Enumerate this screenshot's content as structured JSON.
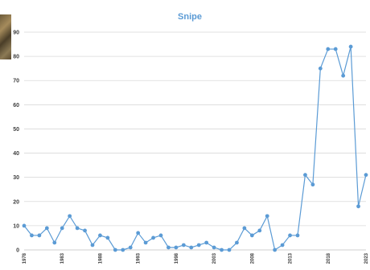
{
  "chart_data": {
    "type": "line",
    "title": "Snipe",
    "xlabel": "",
    "ylabel": "",
    "ylim": [
      0,
      90
    ],
    "xlim": [
      1978,
      2023
    ],
    "yticks": [
      0,
      10,
      20,
      30,
      40,
      50,
      60,
      70,
      80,
      90
    ],
    "xtick_labels": [
      1978,
      1983,
      1988,
      1993,
      1998,
      2003,
      2008,
      2013,
      2018,
      2023
    ],
    "grid": "horizontal",
    "legend": "none",
    "colors": {
      "line": "#5b9bd5",
      "grid": "#d9d9d9",
      "axis": "#bfbfbf"
    },
    "series": [
      {
        "x": [
          1978,
          1979,
          1980,
          1981,
          1982,
          1983,
          1984,
          1985,
          1986,
          1987,
          1988,
          1989,
          1990,
          1991,
          1992,
          1993,
          1994,
          1995,
          1996,
          1997,
          1998,
          1999,
          2000,
          2001,
          2002,
          2003,
          2004,
          2005,
          2006,
          2007,
          2008,
          2009,
          2010,
          2011,
          2012,
          2013,
          2014,
          2015,
          2016,
          2017,
          2018,
          2019,
          2020,
          2021,
          2022,
          2023
        ],
        "values": [
          10,
          6,
          6,
          9,
          3,
          9,
          14,
          9,
          8,
          2,
          6,
          5,
          0,
          0,
          1,
          7,
          3,
          5,
          6,
          1,
          1,
          2,
          1,
          2,
          3,
          1,
          0,
          0,
          3,
          9,
          6,
          8,
          14,
          0,
          2,
          6,
          6,
          31,
          27,
          75,
          83,
          83,
          72,
          84,
          18,
          31
        ]
      }
    ]
  }
}
